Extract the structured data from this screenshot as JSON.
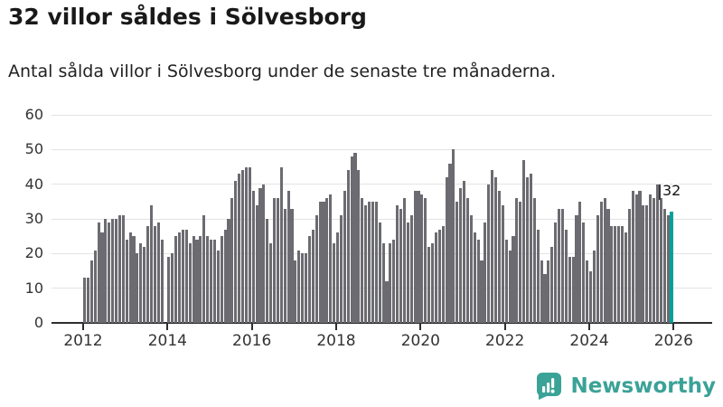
{
  "title": "32 villor såldes i Sölvesborg",
  "subtitle": "Antal sålda villor i Sölvesborg under de senaste tre månaderna.",
  "footer": {
    "brand": "Newsworthy",
    "brand_color": "#3ba297"
  },
  "chart_data": {
    "type": "bar",
    "title": "32 villor såldes i Sölvesborg",
    "subtitle": "Antal sålda villor i Sölvesborg under de senaste tre månaderna.",
    "period": "monthly rolling 3-month totals, Jan 2012 – Dec 2025",
    "x_tick_labels": [
      "2012",
      "2014",
      "2016",
      "2018",
      "2020",
      "2022",
      "2024",
      "2026"
    ],
    "yticks": [
      0,
      10,
      20,
      30,
      40,
      50,
      60
    ],
    "ylim": [
      0,
      60
    ],
    "grid": true,
    "bar_color": "#6b6b71",
    "highlight_color": "#00a19c",
    "highlight": {
      "index": 167,
      "value": 32,
      "label": "32"
    },
    "values": [
      13,
      13,
      18,
      21,
      29,
      26,
      30,
      29,
      30,
      30,
      31,
      31,
      24,
      26,
      25,
      20,
      23,
      22,
      28,
      34,
      28,
      29,
      24,
      0,
      19,
      20,
      25,
      26,
      27,
      27,
      23,
      25,
      24,
      25,
      31,
      25,
      24,
      24,
      21,
      25,
      27,
      30,
      36,
      41,
      43,
      44,
      45,
      45,
      38,
      34,
      39,
      40,
      30,
      23,
      36,
      36,
      45,
      33,
      38,
      33,
      18,
      21,
      20,
      20,
      25,
      27,
      31,
      35,
      35,
      36,
      37,
      23,
      26,
      31,
      38,
      44,
      48,
      49,
      44,
      36,
      34,
      35,
      35,
      35,
      29,
      23,
      12,
      23,
      24,
      34,
      33,
      36,
      29,
      31,
      38,
      38,
      37,
      36,
      22,
      23,
      26,
      27,
      28,
      42,
      46,
      50,
      35,
      39,
      41,
      36,
      31,
      26,
      24,
      18,
      29,
      40,
      44,
      42,
      38,
      34,
      24,
      21,
      25,
      36,
      35,
      47,
      42,
      43,
      36,
      27,
      18,
      14,
      18,
      22,
      29,
      33,
      33,
      27,
      19,
      19,
      31,
      35,
      29,
      18,
      15,
      21,
      31,
      35,
      36,
      33,
      28,
      28,
      28,
      28,
      26,
      33,
      38,
      37,
      38,
      34,
      34,
      37,
      36,
      40,
      36,
      33,
      31,
      32
    ]
  }
}
